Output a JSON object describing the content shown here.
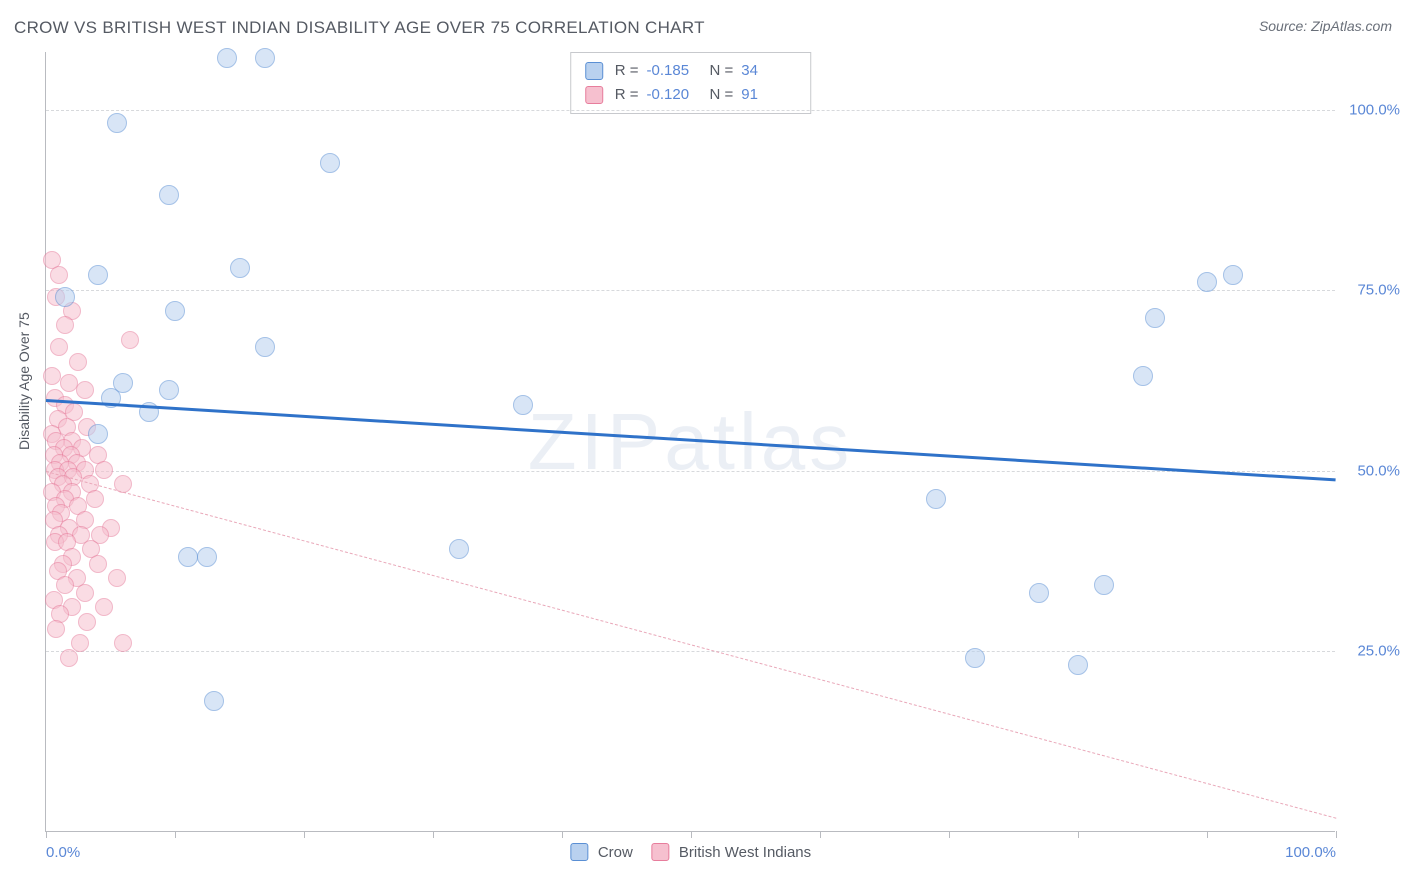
{
  "title": "CROW VS BRITISH WEST INDIAN DISABILITY AGE OVER 75 CORRELATION CHART",
  "source": "Source: ZipAtlas.com",
  "ylabel": "Disability Age Over 75",
  "watermark": "ZIPatlas",
  "xlim": [
    0,
    100
  ],
  "ylim": [
    0,
    108
  ],
  "ytick_vals": [
    25,
    50,
    75,
    100
  ],
  "ytick_labels": [
    "25.0%",
    "50.0%",
    "75.0%",
    "100.0%"
  ],
  "xtick_vals": [
    0,
    10,
    20,
    30,
    40,
    50,
    60,
    70,
    80,
    90,
    100
  ],
  "x_axis_labels": [
    {
      "x": 0,
      "text": "0.0%"
    },
    {
      "x": 100,
      "text": "100.0%"
    }
  ],
  "grid_color": "#d7d9dc",
  "background_color": "#ffffff",
  "series": {
    "crow": {
      "label": "Crow",
      "fill": "#b9d1ef",
      "stroke": "#5a8fd4",
      "fill_opacity": 0.55,
      "marker_radius": 10,
      "R": "-0.185",
      "N": "34",
      "trend": {
        "y_at_x0": 60,
        "y_at_x100": 49,
        "color": "#2f72c9",
        "width": 3,
        "dashed": false
      },
      "points": [
        [
          1.5,
          74
        ],
        [
          14,
          107
        ],
        [
          17,
          107
        ],
        [
          5.5,
          98
        ],
        [
          22,
          92.5
        ],
        [
          9.5,
          88
        ],
        [
          15,
          78
        ],
        [
          4,
          77
        ],
        [
          10,
          72
        ],
        [
          17,
          67
        ],
        [
          6,
          62
        ],
        [
          9.5,
          61
        ],
        [
          5,
          60
        ],
        [
          8,
          58
        ],
        [
          4,
          55
        ],
        [
          37,
          59
        ],
        [
          11,
          38
        ],
        [
          12.5,
          38
        ],
        [
          13,
          18
        ],
        [
          32,
          39
        ],
        [
          69,
          46
        ],
        [
          72,
          24
        ],
        [
          77,
          33
        ],
        [
          80,
          23
        ],
        [
          82,
          34
        ],
        [
          85,
          63
        ],
        [
          86,
          71
        ],
        [
          92,
          77
        ],
        [
          90,
          76
        ]
      ]
    },
    "bwi": {
      "label": "British West Indians",
      "fill": "#f6c0cf",
      "stroke": "#e77d9c",
      "fill_opacity": 0.55,
      "marker_radius": 9,
      "R": "-0.120",
      "N": "91",
      "trend": {
        "y_at_x0": 50,
        "y_at_x100": 2,
        "color": "#e9a8b9",
        "width": 1.5,
        "dashed": true
      },
      "points": [
        [
          0.5,
          79
        ],
        [
          1,
          77
        ],
        [
          0.8,
          74
        ],
        [
          2,
          72
        ],
        [
          1.5,
          70
        ],
        [
          6.5,
          68
        ],
        [
          1,
          67
        ],
        [
          2.5,
          65
        ],
        [
          0.5,
          63
        ],
        [
          1.8,
          62
        ],
        [
          3,
          61
        ],
        [
          0.7,
          60
        ],
        [
          1.5,
          59
        ],
        [
          2.2,
          58
        ],
        [
          0.9,
          57
        ],
        [
          1.6,
          56
        ],
        [
          3.2,
          56
        ],
        [
          0.5,
          55
        ],
        [
          2,
          54
        ],
        [
          0.8,
          54
        ],
        [
          1.4,
          53
        ],
        [
          2.8,
          53
        ],
        [
          0.6,
          52
        ],
        [
          1.9,
          52
        ],
        [
          4,
          52
        ],
        [
          1.1,
          51
        ],
        [
          2.4,
          51
        ],
        [
          0.7,
          50
        ],
        [
          1.7,
          50
        ],
        [
          3,
          50
        ],
        [
          4.5,
          50
        ],
        [
          0.9,
          49
        ],
        [
          2.1,
          49
        ],
        [
          1.3,
          48
        ],
        [
          3.4,
          48
        ],
        [
          6,
          48
        ],
        [
          0.5,
          47
        ],
        [
          2,
          47
        ],
        [
          1.5,
          46
        ],
        [
          3.8,
          46
        ],
        [
          0.8,
          45
        ],
        [
          2.5,
          45
        ],
        [
          1.2,
          44
        ],
        [
          0.6,
          43
        ],
        [
          3,
          43
        ],
        [
          1.8,
          42
        ],
        [
          5,
          42
        ],
        [
          1,
          41
        ],
        [
          2.7,
          41
        ],
        [
          4.2,
          41
        ],
        [
          0.7,
          40
        ],
        [
          1.6,
          40
        ],
        [
          3.5,
          39
        ],
        [
          2,
          38
        ],
        [
          1.3,
          37
        ],
        [
          4,
          37
        ],
        [
          0.9,
          36
        ],
        [
          2.4,
          35
        ],
        [
          5.5,
          35
        ],
        [
          1.5,
          34
        ],
        [
          3,
          33
        ],
        [
          0.6,
          32
        ],
        [
          2,
          31
        ],
        [
          4.5,
          31
        ],
        [
          1.1,
          30
        ],
        [
          3.2,
          29
        ],
        [
          0.8,
          28
        ],
        [
          2.6,
          26
        ],
        [
          6,
          26
        ],
        [
          1.8,
          24
        ]
      ]
    }
  }
}
